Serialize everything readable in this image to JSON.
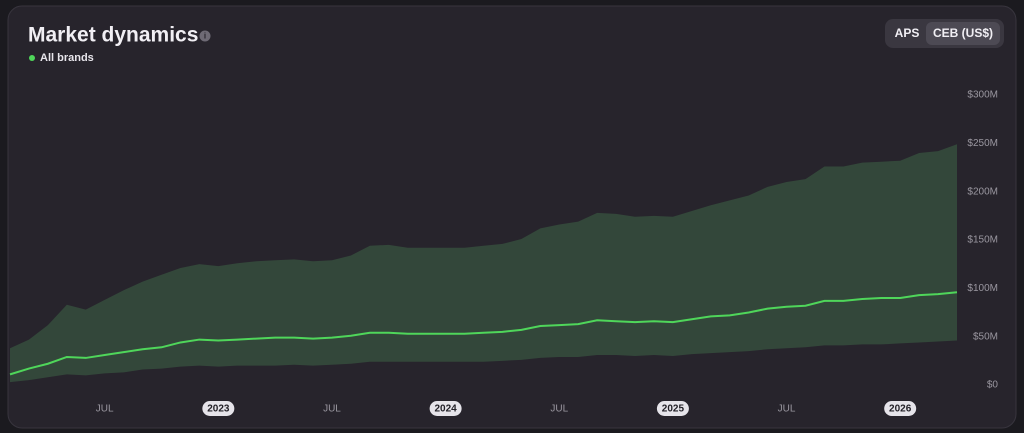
{
  "chart_data": {
    "type": "area-line",
    "title": "Market dynamics",
    "toggle": {
      "options": [
        "APS",
        "CEB (US$)"
      ],
      "selected": 1
    },
    "x": [
      "2022-02",
      "2022-03",
      "2022-04",
      "2022-05",
      "2022-06",
      "2022-07",
      "2022-08",
      "2022-09",
      "2022-10",
      "2022-11",
      "2022-12",
      "2023-01",
      "2023-02",
      "2023-03",
      "2023-04",
      "2023-05",
      "2023-06",
      "2023-07",
      "2023-08",
      "2023-09",
      "2023-10",
      "2023-11",
      "2023-12",
      "2024-01",
      "2024-02",
      "2024-03",
      "2024-04",
      "2024-05",
      "2024-06",
      "2024-07",
      "2024-08",
      "2024-09",
      "2024-10",
      "2024-11",
      "2024-12",
      "2025-01",
      "2025-02",
      "2025-03",
      "2025-04",
      "2025-05",
      "2025-06",
      "2025-07",
      "2025-08",
      "2025-09",
      "2025-10",
      "2025-11",
      "2025-12",
      "2026-01",
      "2026-02",
      "2026-03",
      "2026-04"
    ],
    "xlim": [
      "2022-02",
      "2026-04"
    ],
    "xticks": [
      {
        "value": "2022-07",
        "label": "JUL"
      },
      {
        "value": "2023-01",
        "label": "2023"
      },
      {
        "value": "2023-07",
        "label": "JUL"
      },
      {
        "value": "2024-01",
        "label": "2024"
      },
      {
        "value": "2024-07",
        "label": "JUL"
      },
      {
        "value": "2025-01",
        "label": "2025"
      },
      {
        "value": "2025-07",
        "label": "JUL"
      },
      {
        "value": "2026-01",
        "label": "2026"
      }
    ],
    "ylim": [
      0,
      300
    ],
    "yticks": [
      {
        "value": 0,
        "label": "$0"
      },
      {
        "value": 50,
        "label": "$50M"
      },
      {
        "value": 100,
        "label": "$100M"
      },
      {
        "value": 150,
        "label": "$150M"
      },
      {
        "value": 200,
        "label": "$200M"
      },
      {
        "value": 250,
        "label": "$250M"
      },
      {
        "value": 300,
        "label": "$300M"
      }
    ],
    "series": [
      {
        "name": "All brands",
        "color": "#4fd65a",
        "values": [
          11,
          17,
          22,
          29,
          28,
          31,
          34,
          37,
          39,
          44,
          47,
          46,
          47,
          48,
          49,
          49,
          48,
          49,
          51,
          54,
          54,
          53,
          53,
          53,
          53,
          54,
          55,
          57,
          61,
          62,
          63,
          67,
          66,
          65,
          66,
          65,
          68,
          71,
          72,
          75,
          79,
          81,
          82,
          87,
          87,
          89,
          90,
          90,
          93,
          94,
          96
        ]
      }
    ],
    "range": {
      "color": "#33473a",
      "upper": [
        38,
        47,
        62,
        83,
        78,
        88,
        98,
        107,
        114,
        121,
        125,
        123,
        126,
        128,
        129,
        130,
        128,
        129,
        134,
        144,
        145,
        142,
        142,
        142,
        142,
        144,
        146,
        151,
        162,
        166,
        169,
        178,
        177,
        174,
        175,
        174,
        180,
        186,
        191,
        196,
        205,
        210,
        213,
        226,
        226,
        230,
        231,
        232,
        240,
        242,
        249
      ],
      "lower": [
        3,
        5,
        8,
        11,
        10,
        12,
        13,
        16,
        17,
        19,
        20,
        19,
        20,
        20,
        20,
        21,
        20,
        21,
        22,
        24,
        24,
        24,
        24,
        24,
        24,
        24,
        25,
        26,
        28,
        29,
        29,
        31,
        31,
        30,
        31,
        30,
        32,
        33,
        34,
        35,
        37,
        38,
        39,
        41,
        41,
        42,
        42,
        43,
        44,
        45,
        46
      ]
    }
  }
}
